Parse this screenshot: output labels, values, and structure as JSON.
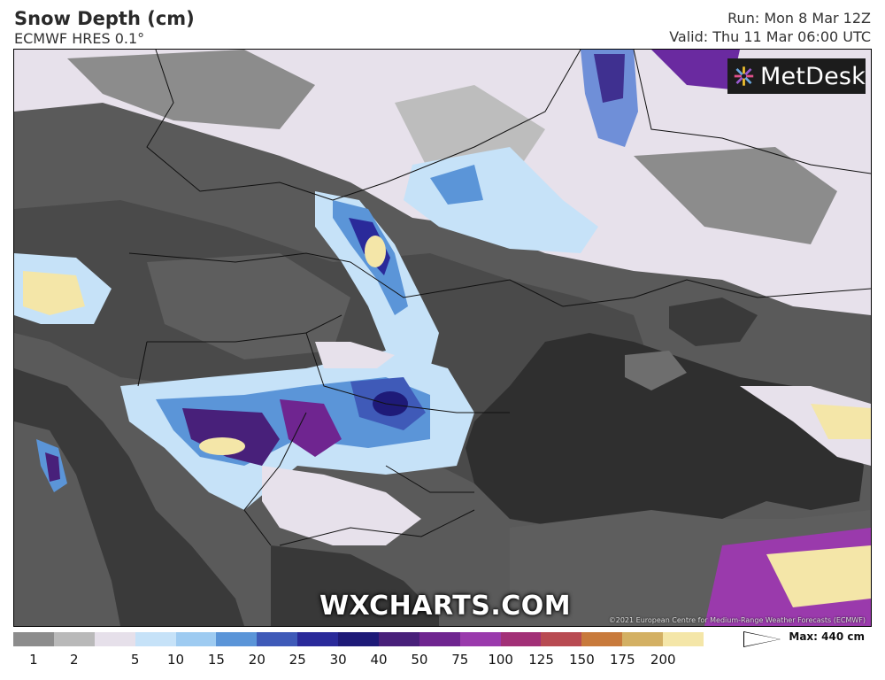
{
  "header": {
    "title": "Snow Depth (cm)",
    "model": "ECMWF HRES 0.1°",
    "run": "Run: Mon 8 Mar 12Z",
    "valid": "Valid: Thu 11 Mar 06:00 UTC"
  },
  "logo": {
    "text": "MetDesk",
    "icon": "metdesk-starburst-icon"
  },
  "map": {
    "watermark": "WXCHARTS.COM",
    "copyright": "©2021 European Centre for Medium-Range Weather Forecasts (ECMWF)"
  },
  "legend": {
    "max_label": "Max: 440 cm",
    "ticks": [
      "1",
      "2",
      "5",
      "10",
      "15",
      "20",
      "25",
      "30",
      "40",
      "50",
      "75",
      "100",
      "125",
      "150",
      "175",
      "200"
    ],
    "colors": [
      "#8c8c8c",
      "#b9b9b9",
      "#e6e0ea",
      "#c6e2f8",
      "#9ecbf1",
      "#5b95d8",
      "#3f5ab8",
      "#2a2a9a",
      "#1e1a78",
      "#48207a",
      "#6f2590",
      "#9a3aac",
      "#a23077",
      "#b84b52",
      "#c87a3c",
      "#d3b063",
      "#f4e6a8",
      "#ffffff"
    ]
  }
}
